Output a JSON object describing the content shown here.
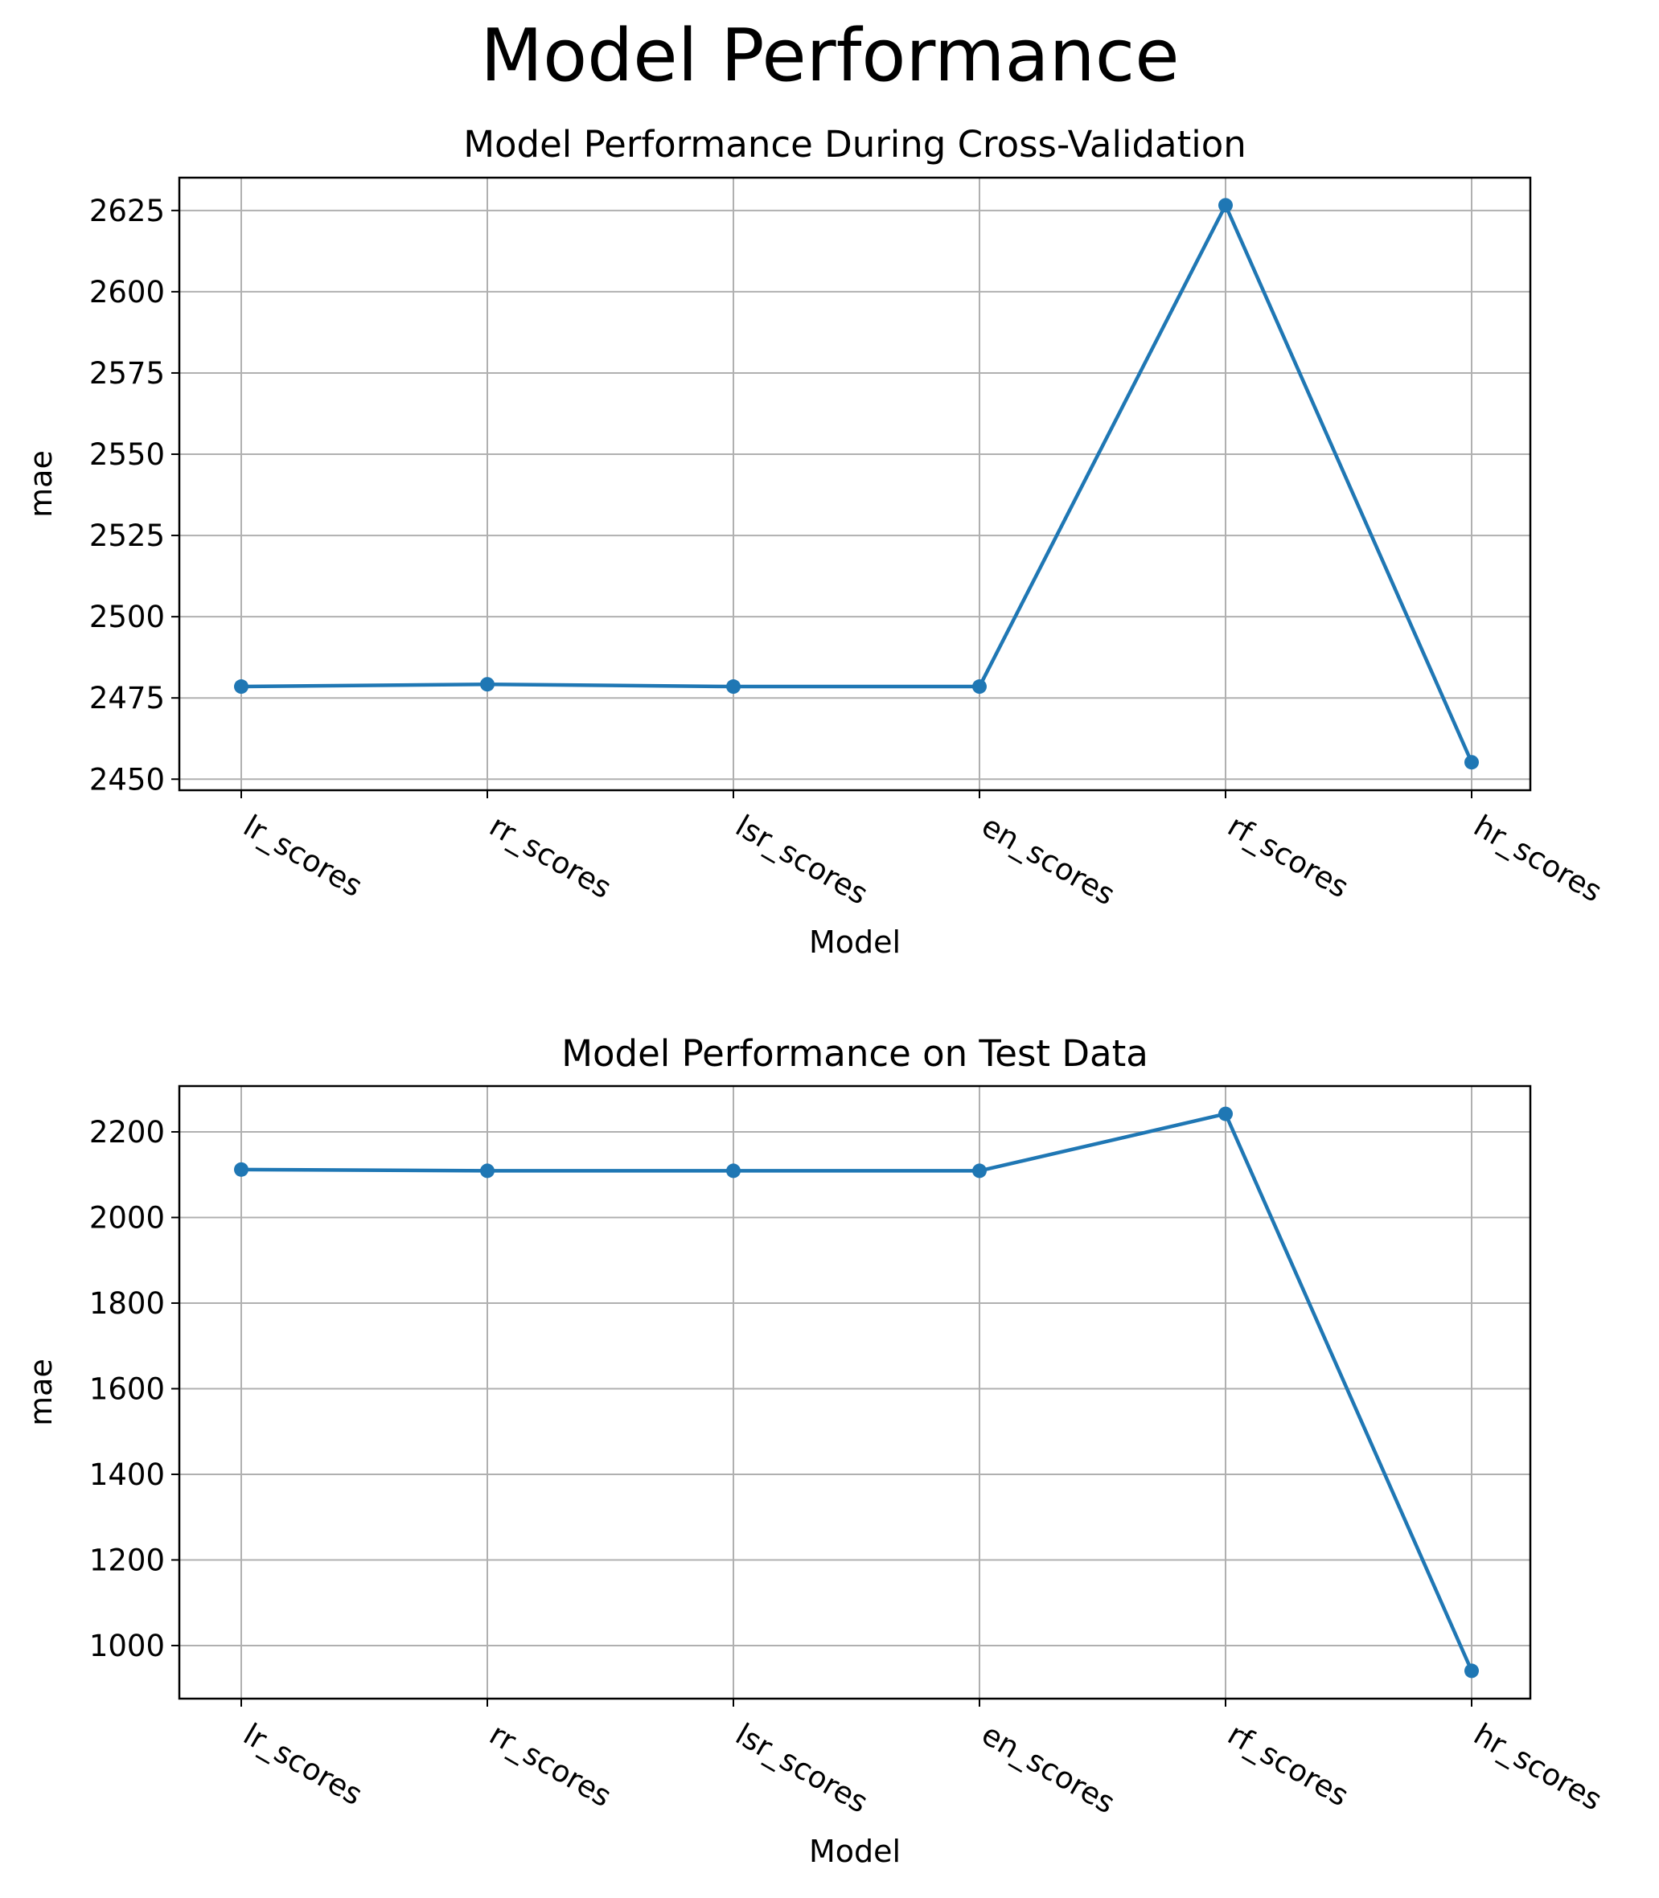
{
  "figure": {
    "suptitle": "Model Performance"
  },
  "chart_data": [
    {
      "type": "line",
      "title": "Model Performance During Cross-Validation",
      "xlabel": "Model",
      "ylabel": "mae",
      "categories": [
        "lr_scores",
        "rr_scores",
        "lsr_scores",
        "en_scores",
        "rf_scores",
        "hr_scores"
      ],
      "series": [
        {
          "values": [
            2478.5,
            2479.2,
            2478.5,
            2478.5,
            2626.6,
            2455.2
          ]
        }
      ],
      "ylim": [
        2446.6,
        2635.1
      ],
      "yticks": [
        2450,
        2475,
        2500,
        2525,
        2550,
        2575,
        2600,
        2625
      ],
      "grid": true,
      "marker": "circle",
      "color": "#1f77b4"
    },
    {
      "type": "line",
      "title": "Model Performance on Test Data",
      "xlabel": "Model",
      "ylabel": "mae",
      "categories": [
        "lr_scores",
        "rr_scores",
        "lsr_scores",
        "en_scores",
        "rf_scores",
        "hr_scores"
      ],
      "series": [
        {
          "values": [
            2112,
            2109,
            2109,
            2109,
            2242,
            941
          ]
        }
      ],
      "ylim": [
        876,
        2307
      ],
      "yticks": [
        1000,
        1200,
        1400,
        1600,
        1800,
        2000,
        2200
      ],
      "grid": true,
      "marker": "circle",
      "color": "#1f77b4"
    }
  ]
}
